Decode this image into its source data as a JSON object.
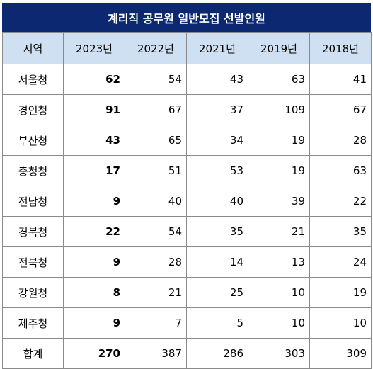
{
  "title": "계리직 공무원 일반모집 선발인원",
  "headers": [
    "지역",
    "2023년",
    "2022년",
    "2021년",
    "2019년",
    "2018년"
  ],
  "rows": [
    {
      "region": "서울청",
      "values": [
        "62",
        "54",
        "43",
        "63",
        "41"
      ]
    },
    {
      "region": "경인청",
      "values": [
        "91",
        "67",
        "37",
        "109",
        "67"
      ]
    },
    {
      "region": "부산청",
      "values": [
        "43",
        "65",
        "34",
        "19",
        "28"
      ]
    },
    {
      "region": "충청청",
      "values": [
        "17",
        "51",
        "53",
        "19",
        "63"
      ]
    },
    {
      "region": "전남청",
      "values": [
        "9",
        "40",
        "40",
        "39",
        "22"
      ]
    },
    {
      "region": "경북청",
      "values": [
        "22",
        "54",
        "35",
        "21",
        "35"
      ]
    },
    {
      "region": "전북청",
      "values": [
        "9",
        "28",
        "14",
        "13",
        "24"
      ]
    },
    {
      "region": "강원청",
      "values": [
        "8",
        "21",
        "25",
        "10",
        "19"
      ]
    },
    {
      "region": "제주청",
      "values": [
        "9",
        "7",
        "5",
        "10",
        "10"
      ]
    }
  ],
  "total": {
    "region": "합계",
    "values": [
      "270",
      "387",
      "286",
      "303",
      "309"
    ]
  },
  "colors": {
    "title_bg": "#0c2870",
    "header_bg": "#cfe0f2",
    "border": "#8a8a8a"
  }
}
